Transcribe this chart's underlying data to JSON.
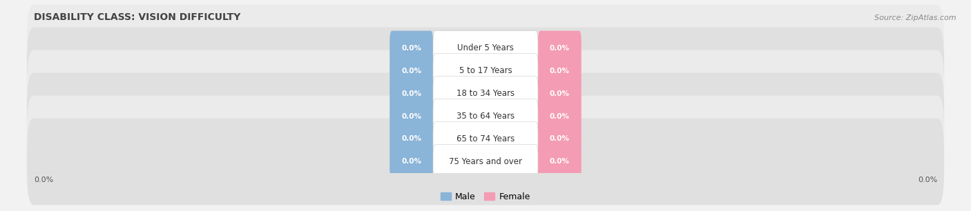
{
  "title": "DISABILITY CLASS: VISION DIFFICULTY",
  "source_text": "Source: ZipAtlas.com",
  "categories": [
    "Under 5 Years",
    "5 to 17 Years",
    "18 to 34 Years",
    "35 to 64 Years",
    "65 to 74 Years",
    "75 Years and over"
  ],
  "male_values": [
    0.0,
    0.0,
    0.0,
    0.0,
    0.0,
    0.0
  ],
  "female_values": [
    0.0,
    0.0,
    0.0,
    0.0,
    0.0,
    0.0
  ],
  "male_color": "#8ab4d8",
  "female_color": "#f49cb4",
  "male_label": "Male",
  "female_label": "Female",
  "row_bg_light": "#ebebeb",
  "row_bg_dark": "#e0e0e0",
  "fig_bg": "#f2f2f2",
  "title_fontsize": 10,
  "source_fontsize": 8,
  "cat_fontsize": 8.5,
  "val_fontsize": 7.5,
  "legend_fontsize": 9,
  "axis_label_fontsize": 8,
  "figsize": [
    14.06,
    3.06
  ],
  "dpi": 100,
  "xlim_left": -100,
  "xlim_right": 100,
  "bottom_label": "0.0%"
}
